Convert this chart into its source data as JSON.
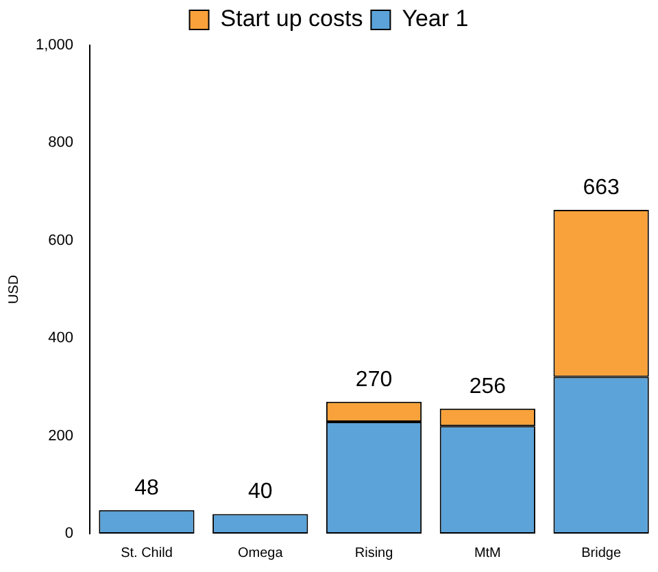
{
  "chart_data": {
    "type": "bar",
    "ylabel": "USD",
    "categories": [
      "St. Child",
      "Omega",
      "Rising",
      "MtM",
      "Bridge"
    ],
    "stacked": true,
    "series": [
      {
        "name": "Year 1",
        "color": "#5ba3d9",
        "values": [
          48,
          40,
          229,
          220,
          321
        ]
      },
      {
        "name": "Start up costs",
        "color": "#f9a23b",
        "values": [
          0,
          0,
          41,
          36,
          342
        ]
      }
    ],
    "totals": [
      "48",
      "40",
      "270",
      "256",
      "663"
    ],
    "ylim": [
      0,
      1000
    ],
    "yticks": [
      0,
      200,
      400,
      600,
      800,
      {
        "value": 1000,
        "label": "1,000"
      }
    ],
    "grid": false,
    "legend": "top"
  }
}
